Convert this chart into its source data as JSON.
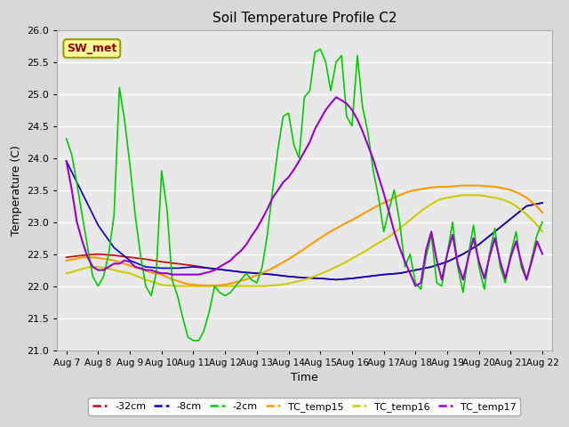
{
  "title": "Soil Temperature Profile C2",
  "xlabel": "Time",
  "ylabel": "Temperature (C)",
  "ylim": [
    21.0,
    26.0
  ],
  "yticks": [
    21.0,
    21.5,
    22.0,
    22.5,
    23.0,
    23.5,
    24.0,
    24.5,
    25.0,
    25.5,
    26.0
  ],
  "xtick_labels": [
    "Aug 7",
    "Aug 8",
    "Aug 9",
    "Aug 10",
    "Aug 11",
    "Aug 12",
    "Aug 13",
    "Aug 14",
    "Aug 15",
    "Aug 16",
    "Aug 17",
    "Aug 18",
    "Aug 19",
    "Aug 20",
    "Aug 21",
    "Aug 22"
  ],
  "xtick_positions": [
    0,
    1,
    2,
    3,
    4,
    5,
    6,
    7,
    8,
    9,
    10,
    11,
    12,
    13,
    14,
    15
  ],
  "bg_color": "#e8e8e8",
  "fig_bg_color": "#d8d8d8",
  "grid_color": "#ffffff",
  "annotation_text": "SW_met",
  "annotation_bg": "#ffff99",
  "annotation_border": "#999900",
  "annotation_text_color": "#990000",
  "series_order": [
    "-32cm",
    "-8cm",
    "TC_temp16",
    "TC_temp15",
    "-2cm",
    "TC_temp17"
  ],
  "series": {
    "-32cm": {
      "color": "#cc0000",
      "lw": 1.2,
      "x": [
        0,
        0.5,
        1,
        1.5,
        2,
        2.5,
        3,
        3.5,
        4,
        4.5,
        5,
        5.5,
        6,
        6.5,
        7,
        7.5,
        8,
        8.5,
        9,
        9.5,
        10,
        10.5,
        11,
        11.5,
        12,
        12.5,
        13,
        13.5,
        14,
        14.5,
        15
      ],
      "y": [
        22.45,
        22.48,
        22.5,
        22.48,
        22.45,
        22.42,
        22.38,
        22.35,
        22.32,
        22.28,
        22.25,
        22.22,
        22.2,
        22.18,
        22.15,
        22.13,
        22.12,
        22.1,
        22.12,
        22.15,
        22.18,
        22.2,
        22.25,
        22.3,
        22.38,
        22.5,
        22.65,
        22.85,
        23.05,
        23.25,
        23.3
      ]
    },
    "-8cm": {
      "color": "#0000cc",
      "lw": 1.2,
      "x": [
        0,
        0.5,
        1,
        1.5,
        2,
        2.5,
        3,
        3.5,
        4,
        4.5,
        5,
        5.5,
        6,
        6.5,
        7,
        7.5,
        8,
        8.5,
        9,
        9.5,
        10,
        10.5,
        11,
        11.5,
        12,
        12.5,
        13,
        13.5,
        14,
        14.5,
        15
      ],
      "y": [
        23.95,
        23.45,
        22.95,
        22.6,
        22.4,
        22.3,
        22.28,
        22.28,
        22.3,
        22.28,
        22.25,
        22.22,
        22.2,
        22.18,
        22.15,
        22.13,
        22.12,
        22.1,
        22.12,
        22.15,
        22.18,
        22.2,
        22.25,
        22.3,
        22.38,
        22.5,
        22.65,
        22.85,
        23.05,
        23.25,
        23.3
      ]
    },
    "-2cm": {
      "color": "#00cc00",
      "lw": 1.2,
      "x": [
        0,
        0.17,
        0.33,
        0.5,
        0.67,
        0.83,
        1.0,
        1.17,
        1.33,
        1.5,
        1.67,
        1.83,
        2.0,
        2.17,
        2.33,
        2.5,
        2.67,
        2.83,
        3.0,
        3.17,
        3.33,
        3.5,
        3.67,
        3.83,
        4.0,
        4.17,
        4.33,
        4.5,
        4.67,
        4.83,
        5.0,
        5.17,
        5.33,
        5.5,
        5.67,
        5.83,
        6.0,
        6.17,
        6.33,
        6.5,
        6.67,
        6.83,
        7.0,
        7.17,
        7.33,
        7.5,
        7.67,
        7.83,
        8.0,
        8.17,
        8.33,
        8.5,
        8.67,
        8.83,
        9.0,
        9.17,
        9.33,
        9.5,
        9.67,
        9.83,
        10.0,
        10.17,
        10.33,
        10.5,
        10.67,
        10.83,
        11.0,
        11.17,
        11.33,
        11.5,
        11.67,
        11.83,
        12.0,
        12.17,
        12.33,
        12.5,
        12.67,
        12.83,
        13.0,
        13.17,
        13.33,
        13.5,
        13.67,
        13.83,
        14.0,
        14.17,
        14.33,
        14.5,
        14.67,
        14.83,
        15.0
      ],
      "y": [
        24.3,
        24.05,
        23.6,
        23.1,
        22.6,
        22.15,
        22.0,
        22.15,
        22.5,
        23.1,
        25.1,
        24.6,
        23.9,
        23.1,
        22.5,
        22.0,
        21.85,
        22.2,
        23.8,
        23.2,
        22.1,
        21.85,
        21.5,
        21.2,
        21.15,
        21.15,
        21.3,
        21.6,
        22.0,
        21.9,
        21.85,
        21.9,
        22.0,
        22.1,
        22.2,
        22.1,
        22.05,
        22.3,
        22.8,
        23.5,
        24.15,
        24.65,
        24.7,
        24.2,
        24.0,
        24.95,
        25.05,
        25.65,
        25.7,
        25.5,
        25.05,
        25.5,
        25.6,
        24.65,
        24.5,
        25.6,
        24.8,
        24.4,
        23.8,
        23.4,
        22.85,
        23.2,
        23.5,
        23.0,
        22.3,
        22.5,
        22.05,
        21.95,
        22.45,
        22.8,
        22.05,
        22.0,
        22.5,
        23.0,
        22.3,
        21.9,
        22.5,
        22.95,
        22.3,
        21.95,
        22.5,
        22.9,
        22.3,
        22.05,
        22.5,
        22.85,
        22.3,
        22.1,
        22.45,
        22.8,
        23.0
      ]
    },
    "TC_temp15": {
      "color": "#ff9900",
      "lw": 1.5,
      "x": [
        0,
        0.25,
        0.5,
        0.75,
        1.0,
        1.25,
        1.5,
        1.75,
        2.0,
        2.25,
        2.5,
        2.75,
        3.0,
        3.25,
        3.5,
        3.75,
        4.0,
        4.25,
        4.5,
        4.75,
        5.0,
        5.25,
        5.5,
        5.75,
        6.0,
        6.25,
        6.5,
        6.75,
        7.0,
        7.25,
        7.5,
        7.75,
        8.0,
        8.25,
        8.5,
        8.75,
        9.0,
        9.25,
        9.5,
        9.75,
        10.0,
        10.25,
        10.5,
        10.75,
        11.0,
        11.25,
        11.5,
        11.75,
        12.0,
        12.25,
        12.5,
        12.75,
        13.0,
        13.25,
        13.5,
        13.75,
        14.0,
        14.25,
        14.5,
        14.75,
        15.0
      ],
      "y": [
        22.4,
        22.42,
        22.45,
        22.45,
        22.44,
        22.42,
        22.4,
        22.36,
        22.32,
        22.28,
        22.24,
        22.2,
        22.18,
        22.12,
        22.08,
        22.04,
        22.02,
        22.01,
        22.01,
        22.01,
        22.02,
        22.05,
        22.08,
        22.12,
        22.17,
        22.22,
        22.28,
        22.35,
        22.42,
        22.5,
        22.58,
        22.67,
        22.75,
        22.83,
        22.9,
        22.97,
        23.03,
        23.1,
        23.17,
        23.24,
        23.3,
        23.36,
        23.42,
        23.47,
        23.5,
        23.52,
        23.54,
        23.55,
        23.55,
        23.56,
        23.57,
        23.57,
        23.57,
        23.56,
        23.55,
        23.53,
        23.5,
        23.45,
        23.38,
        23.28,
        23.15
      ]
    },
    "TC_temp16": {
      "color": "#cccc00",
      "lw": 1.5,
      "x": [
        0,
        0.25,
        0.5,
        0.75,
        1.0,
        1.25,
        1.5,
        1.75,
        2.0,
        2.25,
        2.5,
        2.75,
        3.0,
        3.25,
        3.5,
        3.75,
        4.0,
        4.25,
        4.5,
        4.75,
        5.0,
        5.25,
        5.5,
        5.75,
        6.0,
        6.25,
        6.5,
        6.75,
        7.0,
        7.25,
        7.5,
        7.75,
        8.0,
        8.25,
        8.5,
        8.75,
        9.0,
        9.25,
        9.5,
        9.75,
        10.0,
        10.25,
        10.5,
        10.75,
        11.0,
        11.25,
        11.5,
        11.75,
        12.0,
        12.25,
        12.5,
        12.75,
        13.0,
        13.25,
        13.5,
        13.75,
        14.0,
        14.25,
        14.5,
        14.75,
        15.0
      ],
      "y": [
        22.2,
        22.23,
        22.27,
        22.3,
        22.3,
        22.28,
        22.25,
        22.22,
        22.2,
        22.15,
        22.1,
        22.06,
        22.02,
        22.01,
        22.0,
        22.0,
        22.0,
        22.0,
        22.0,
        22.0,
        22.0,
        22.0,
        22.0,
        22.0,
        22.0,
        22.0,
        22.01,
        22.02,
        22.04,
        22.07,
        22.1,
        22.14,
        22.19,
        22.24,
        22.3,
        22.36,
        22.43,
        22.5,
        22.57,
        22.65,
        22.72,
        22.8,
        22.9,
        23.0,
        23.1,
        23.2,
        23.28,
        23.35,
        23.38,
        23.4,
        23.42,
        23.42,
        23.42,
        23.4,
        23.38,
        23.35,
        23.3,
        23.22,
        23.12,
        23.0,
        22.85
      ]
    },
    "TC_temp17": {
      "color": "#9900cc",
      "lw": 1.5,
      "x": [
        0,
        0.17,
        0.33,
        0.5,
        0.67,
        0.83,
        1.0,
        1.17,
        1.33,
        1.5,
        1.67,
        1.83,
        2.0,
        2.17,
        2.33,
        2.5,
        2.67,
        2.83,
        3.0,
        3.17,
        3.33,
        3.5,
        3.67,
        3.83,
        4.0,
        4.17,
        4.33,
        4.5,
        4.67,
        4.83,
        5.0,
        5.17,
        5.33,
        5.5,
        5.67,
        5.83,
        6.0,
        6.17,
        6.33,
        6.5,
        6.67,
        6.83,
        7.0,
        7.17,
        7.33,
        7.5,
        7.67,
        7.83,
        8.0,
        8.17,
        8.33,
        8.5,
        8.67,
        8.83,
        9.0,
        9.17,
        9.33,
        9.5,
        9.67,
        9.83,
        10.0,
        10.17,
        10.33,
        10.5,
        10.67,
        10.83,
        11.0,
        11.17,
        11.33,
        11.5,
        11.67,
        11.83,
        12.0,
        12.17,
        12.33,
        12.5,
        12.67,
        12.83,
        13.0,
        13.17,
        13.33,
        13.5,
        13.67,
        13.83,
        14.0,
        14.17,
        14.33,
        14.5,
        14.67,
        14.83,
        15.0
      ],
      "y": [
        23.95,
        23.5,
        23.0,
        22.7,
        22.45,
        22.3,
        22.25,
        22.25,
        22.3,
        22.35,
        22.35,
        22.4,
        22.38,
        22.3,
        22.28,
        22.25,
        22.25,
        22.22,
        22.2,
        22.2,
        22.18,
        22.18,
        22.18,
        22.18,
        22.18,
        22.18,
        22.2,
        22.22,
        22.25,
        22.3,
        22.35,
        22.4,
        22.48,
        22.55,
        22.65,
        22.78,
        22.9,
        23.05,
        23.2,
        23.38,
        23.5,
        23.62,
        23.7,
        23.82,
        23.95,
        24.1,
        24.25,
        24.45,
        24.6,
        24.75,
        24.85,
        24.95,
        24.9,
        24.85,
        24.75,
        24.6,
        24.42,
        24.2,
        23.98,
        23.72,
        23.45,
        23.15,
        22.85,
        22.6,
        22.38,
        22.2,
        22.0,
        22.05,
        22.55,
        22.85,
        22.4,
        22.1,
        22.5,
        22.8,
        22.35,
        22.1,
        22.45,
        22.75,
        22.38,
        22.12,
        22.45,
        22.75,
        22.38,
        22.12,
        22.45,
        22.7,
        22.38,
        22.1,
        22.4,
        22.7,
        22.5
      ]
    }
  },
  "legend_entries": [
    "-32cm",
    "-8cm",
    "-2cm",
    "TC_temp15",
    "TC_temp16",
    "TC_temp17"
  ],
  "legend_colors": [
    "#cc0000",
    "#0000cc",
    "#00cc00",
    "#ff9900",
    "#cccc00",
    "#9900cc"
  ]
}
